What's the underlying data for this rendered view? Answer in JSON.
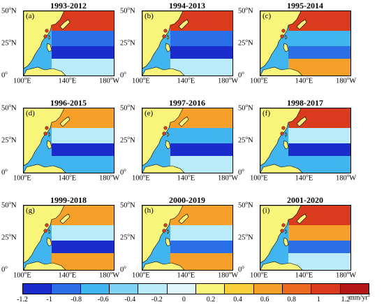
{
  "panels": [
    {
      "title": "1993-2012",
      "letter": "(a)"
    },
    {
      "title": "1994-2013",
      "letter": "(b)"
    },
    {
      "title": "1995-2014",
      "letter": "(c)"
    },
    {
      "title": "1996-2015",
      "letter": "(d)"
    },
    {
      "title": "1997-2016",
      "letter": "(e)"
    },
    {
      "title": "1998-2017",
      "letter": "(f)"
    },
    {
      "title": "1999-2018",
      "letter": "(g)"
    },
    {
      "title": "2000-2019",
      "letter": "(h)"
    },
    {
      "title": "2001-2020",
      "letter": "(i)"
    }
  ],
  "axes": {
    "lat_ticks": [
      {
        "num": "50",
        "deg": "o",
        "dir": "N"
      },
      {
        "num": "25",
        "deg": "o",
        "dir": "N"
      },
      {
        "num": "0",
        "deg": "o",
        "dir": ""
      }
    ],
    "lon_ticks": [
      {
        "num": "100",
        "deg": "o",
        "dir": "E"
      },
      {
        "num": "140",
        "deg": "o",
        "dir": "E"
      },
      {
        "num": "180",
        "deg": "o",
        "dir": "W"
      }
    ]
  },
  "colorbar": {
    "tick_labels": [
      "-1.2",
      "-1",
      "-0.8",
      "-0.6",
      "-0.4",
      "-0.2",
      "0",
      "0.2",
      "0.4",
      "0.6",
      "0.8",
      "1",
      "1.2"
    ],
    "colors": [
      "#1a2ccc",
      "#2a6fe8",
      "#41b5f0",
      "#7fd3f5",
      "#b9ebf8",
      "#dff6fb",
      "#f8f57a",
      "#f9cf3b",
      "#f6a02a",
      "#ec6a1f",
      "#d93b1c",
      "#b51616"
    ],
    "unit_main": "mm/yr",
    "unit_exp": "2"
  },
  "colors": {
    "land": "#f8f57a",
    "strong_negative": "#1a2ccc",
    "negative": "#2a6fe8",
    "weak_negative": "#41b5f0",
    "near_zero": "#b9ebf8",
    "positive": "#f6a02a",
    "strong_positive": "#d93b1c"
  }
}
